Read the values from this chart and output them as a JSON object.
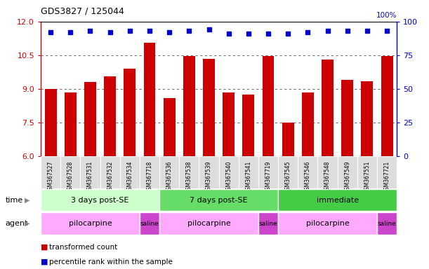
{
  "title": "GDS3827 / 125044",
  "samples": [
    "GSM367527",
    "GSM367528",
    "GSM367531",
    "GSM367532",
    "GSM367534",
    "GSM367718",
    "GSM367536",
    "GSM367538",
    "GSM367539",
    "GSM367540",
    "GSM367541",
    "GSM367719",
    "GSM367545",
    "GSM367546",
    "GSM367548",
    "GSM367549",
    "GSM367551",
    "GSM367721"
  ],
  "bar_values": [
    9.0,
    8.85,
    9.3,
    9.55,
    9.9,
    11.05,
    8.6,
    10.45,
    10.35,
    8.85,
    8.75,
    10.45,
    7.5,
    8.85,
    10.3,
    9.4,
    9.35,
    10.45
  ],
  "dot_values": [
    92,
    92,
    93,
    92,
    93,
    93,
    92,
    93,
    94,
    91,
    91,
    91,
    91,
    92,
    93,
    93,
    93,
    93
  ],
  "bar_color": "#cc0000",
  "dot_color": "#0000cc",
  "ylim_left": [
    6,
    12
  ],
  "ylim_right": [
    0,
    100
  ],
  "yticks_left": [
    6,
    7.5,
    9,
    10.5,
    12
  ],
  "yticks_right": [
    0,
    25,
    50,
    75,
    100
  ],
  "time_groups": [
    {
      "label": "3 days post-SE",
      "start": 0,
      "end": 6,
      "color": "#ccffcc"
    },
    {
      "label": "7 days post-SE",
      "start": 6,
      "end": 12,
      "color": "#66dd66"
    },
    {
      "label": "immediate",
      "start": 12,
      "end": 18,
      "color": "#44cc44"
    }
  ],
  "agent_groups": [
    {
      "label": "pilocarpine",
      "start": 0,
      "end": 5,
      "color": "#ffaaff"
    },
    {
      "label": "saline",
      "start": 5,
      "end": 6,
      "color": "#cc44cc"
    },
    {
      "label": "pilocarpine",
      "start": 6,
      "end": 11,
      "color": "#ffaaff"
    },
    {
      "label": "saline",
      "start": 11,
      "end": 12,
      "color": "#cc44cc"
    },
    {
      "label": "pilocarpine",
      "start": 12,
      "end": 17,
      "color": "#ffaaff"
    },
    {
      "label": "saline",
      "start": 17,
      "end": 18,
      "color": "#cc44cc"
    }
  ],
  "legend_items": [
    {
      "label": "transformed count",
      "color": "#cc0000"
    },
    {
      "label": "percentile rank within the sample",
      "color": "#0000cc"
    }
  ],
  "bg_color": "#ffffff",
  "grid_color": "#555555",
  "sample_bg": "#dddddd"
}
